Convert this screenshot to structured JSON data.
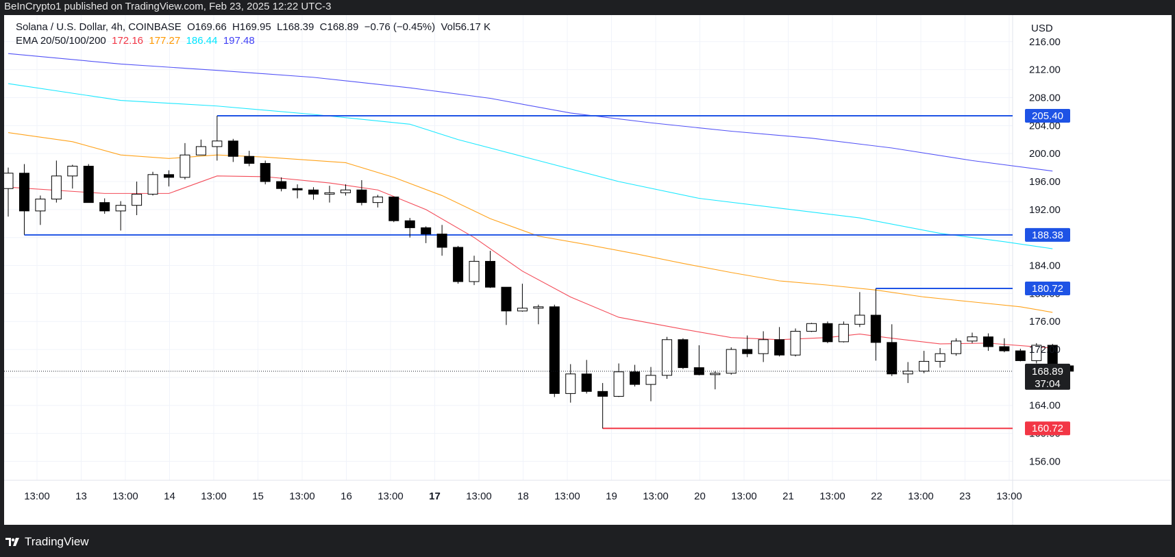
{
  "header": {
    "published_text": "BeInCrypto1 published on TradingView.com, Feb 23, 2025 12:22 UTC-3"
  },
  "legend": {
    "symbol": "Solana / U.S. Dollar, 4h, COINBASE",
    "open": "O169.66",
    "high": "H169.95",
    "low": "L168.39",
    "close": "C168.89",
    "change": "−0.76 (−0.45%)",
    "volume": "Vol56.17 K",
    "ema_label": "EMA 20/50/100/200",
    "ema_values": [
      "172.16",
      "177.27",
      "186.44",
      "197.48"
    ]
  },
  "footer": {
    "brand": "TradingView"
  },
  "colors": {
    "up_body": "#ffffff",
    "down_body": "#000000",
    "ema20": "#f23645",
    "ema50": "#ff9800",
    "ema100": "#00e5ff",
    "ema200": "#3f3ff5",
    "level_line": "#1e53e5",
    "support_line": "#f23645",
    "price_badge": "#1e1f22"
  },
  "chart_data": {
    "type": "candlestick",
    "currency": "USD",
    "ylim": [
      153.3,
      219.8
    ],
    "y_ticks": [
      156,
      160,
      164,
      168,
      172,
      176,
      180,
      184,
      188,
      192,
      196,
      200,
      204,
      208,
      212,
      216
    ],
    "x_ticks": [
      "13:00",
      "13",
      "13:00",
      "14",
      "13:00",
      "15",
      "13:00",
      "16",
      "13:00",
      "17",
      "13:00",
      "18",
      "13:00",
      "19",
      "13:00",
      "20",
      "13:00",
      "21",
      "13:00",
      "22",
      "13:00",
      "23",
      "13:00"
    ],
    "x_tick_bold_index": 9,
    "candles": [
      {
        "o": 195.0,
        "h": 198.0,
        "l": 191.0,
        "c": 197.2
      },
      {
        "o": 197.2,
        "h": 198.5,
        "l": 188.4,
        "c": 191.8
      },
      {
        "o": 191.8,
        "h": 194.0,
        "l": 189.8,
        "c": 193.5
      },
      {
        "o": 193.5,
        "h": 199.0,
        "l": 193.0,
        "c": 196.8
      },
      {
        "o": 196.8,
        "h": 198.4,
        "l": 195.0,
        "c": 198.2
      },
      {
        "o": 198.2,
        "h": 198.5,
        "l": 193.0,
        "c": 193.0
      },
      {
        "o": 193.0,
        "h": 193.6,
        "l": 191.4,
        "c": 191.8
      },
      {
        "o": 191.8,
        "h": 193.2,
        "l": 189.0,
        "c": 192.6
      },
      {
        "o": 192.6,
        "h": 196.0,
        "l": 191.2,
        "c": 194.2
      },
      {
        "o": 194.2,
        "h": 197.4,
        "l": 194.0,
        "c": 197.0
      },
      {
        "o": 197.0,
        "h": 197.6,
        "l": 195.3,
        "c": 196.6
      },
      {
        "o": 196.6,
        "h": 201.5,
        "l": 196.3,
        "c": 199.8
      },
      {
        "o": 199.8,
        "h": 202.0,
        "l": 199.8,
        "c": 201.0
      },
      {
        "o": 201.0,
        "h": 205.4,
        "l": 199.0,
        "c": 201.8
      },
      {
        "o": 201.8,
        "h": 202.1,
        "l": 198.8,
        "c": 199.6
      },
      {
        "o": 199.6,
        "h": 200.4,
        "l": 198.2,
        "c": 198.6
      },
      {
        "o": 198.6,
        "h": 199.0,
        "l": 195.6,
        "c": 196.0
      },
      {
        "o": 196.0,
        "h": 196.6,
        "l": 194.6,
        "c": 195.0
      },
      {
        "o": 195.0,
        "h": 195.6,
        "l": 193.6,
        "c": 194.8
      },
      {
        "o": 194.8,
        "h": 195.2,
        "l": 193.4,
        "c": 194.2
      },
      {
        "o": 194.2,
        "h": 195.4,
        "l": 193.0,
        "c": 194.4
      },
      {
        "o": 194.4,
        "h": 195.6,
        "l": 194.0,
        "c": 194.8
      },
      {
        "o": 194.8,
        "h": 196.2,
        "l": 192.6,
        "c": 193.0
      },
      {
        "o": 193.0,
        "h": 194.1,
        "l": 192.3,
        "c": 193.8
      },
      {
        "o": 193.8,
        "h": 193.8,
        "l": 190.2,
        "c": 190.4
      },
      {
        "o": 190.4,
        "h": 190.8,
        "l": 188.0,
        "c": 189.4
      },
      {
        "o": 189.4,
        "h": 189.6,
        "l": 187.2,
        "c": 188.5
      },
      {
        "o": 188.5,
        "h": 189.8,
        "l": 185.4,
        "c": 186.6
      },
      {
        "o": 186.6,
        "h": 186.8,
        "l": 181.4,
        "c": 181.7
      },
      {
        "o": 181.7,
        "h": 185.4,
        "l": 181.2,
        "c": 184.6
      },
      {
        "o": 184.6,
        "h": 186.1,
        "l": 180.8,
        "c": 180.9
      },
      {
        "o": 180.9,
        "h": 180.9,
        "l": 175.5,
        "c": 177.5
      },
      {
        "o": 177.5,
        "h": 181.4,
        "l": 177.4,
        "c": 177.9
      },
      {
        "o": 177.9,
        "h": 178.4,
        "l": 175.6,
        "c": 178.1
      },
      {
        "o": 178.1,
        "h": 178.4,
        "l": 165.2,
        "c": 165.7
      },
      {
        "o": 165.7,
        "h": 169.9,
        "l": 164.4,
        "c": 168.5
      },
      {
        "o": 168.5,
        "h": 170.5,
        "l": 165.7,
        "c": 166.0
      },
      {
        "o": 166.0,
        "h": 167.2,
        "l": 160.7,
        "c": 165.3
      },
      {
        "o": 165.3,
        "h": 170.0,
        "l": 165.2,
        "c": 168.8
      },
      {
        "o": 168.8,
        "h": 169.8,
        "l": 166.7,
        "c": 167.0
      },
      {
        "o": 167.0,
        "h": 169.5,
        "l": 164.6,
        "c": 168.3
      },
      {
        "o": 168.3,
        "h": 173.8,
        "l": 167.8,
        "c": 173.4
      },
      {
        "o": 173.4,
        "h": 173.6,
        "l": 169.2,
        "c": 169.4
      },
      {
        "o": 169.4,
        "h": 172.6,
        "l": 168.3,
        "c": 168.4
      },
      {
        "o": 168.4,
        "h": 168.9,
        "l": 166.3,
        "c": 168.6
      },
      {
        "o": 168.6,
        "h": 172.3,
        "l": 168.4,
        "c": 172.0
      },
      {
        "o": 172.0,
        "h": 174.0,
        "l": 170.9,
        "c": 171.4
      },
      {
        "o": 171.4,
        "h": 174.6,
        "l": 170.2,
        "c": 173.4
      },
      {
        "o": 173.4,
        "h": 175.2,
        "l": 171.0,
        "c": 171.2
      },
      {
        "o": 171.2,
        "h": 175.0,
        "l": 171.0,
        "c": 174.6
      },
      {
        "o": 174.6,
        "h": 175.8,
        "l": 174.5,
        "c": 175.7
      },
      {
        "o": 175.7,
        "h": 176.0,
        "l": 172.9,
        "c": 173.1
      },
      {
        "o": 173.1,
        "h": 176.0,
        "l": 173.0,
        "c": 175.6
      },
      {
        "o": 175.6,
        "h": 180.2,
        "l": 175.2,
        "c": 176.9
      },
      {
        "o": 176.9,
        "h": 180.7,
        "l": 170.4,
        "c": 173.0
      },
      {
        "o": 173.0,
        "h": 175.6,
        "l": 168.2,
        "c": 168.5
      },
      {
        "o": 168.5,
        "h": 170.2,
        "l": 167.2,
        "c": 168.9
      },
      {
        "o": 168.9,
        "h": 171.8,
        "l": 168.6,
        "c": 170.3
      },
      {
        "o": 170.3,
        "h": 172.2,
        "l": 169.4,
        "c": 171.4
      },
      {
        "o": 171.4,
        "h": 173.6,
        "l": 171.1,
        "c": 173.2
      },
      {
        "o": 173.2,
        "h": 174.4,
        "l": 172.9,
        "c": 173.8
      },
      {
        "o": 173.8,
        "h": 174.3,
        "l": 171.8,
        "c": 172.4
      },
      {
        "o": 172.4,
        "h": 173.6,
        "l": 171.6,
        "c": 171.8
      },
      {
        "o": 171.8,
        "h": 172.1,
        "l": 170.3,
        "c": 170.4
      },
      {
        "o": 170.4,
        "h": 172.9,
        "l": 170.0,
        "c": 172.6
      },
      {
        "o": 172.6,
        "h": 172.8,
        "l": 169.2,
        "c": 169.3
      },
      {
        "o": 169.66,
        "h": 169.95,
        "l": 168.39,
        "c": 168.89
      }
    ],
    "ema": [
      {
        "name": "EMA 20",
        "color": "#f23645",
        "values": [
          [
            0,
            195.2
          ],
          [
            6,
            194.3
          ],
          [
            10,
            194.3
          ],
          [
            13,
            196.8
          ],
          [
            16,
            196.7
          ],
          [
            20,
            195.8
          ],
          [
            23,
            194.8
          ],
          [
            26,
            192.0
          ],
          [
            29,
            188.0
          ],
          [
            32,
            183.2
          ],
          [
            35,
            179.5
          ],
          [
            38,
            176.6
          ],
          [
            42,
            174.9
          ],
          [
            45,
            173.7
          ],
          [
            48,
            173.4
          ],
          [
            51,
            173.7
          ],
          [
            53,
            174.2
          ],
          [
            55,
            173.6
          ],
          [
            58,
            172.8
          ],
          [
            61,
            172.9
          ],
          [
            65,
            172.2
          ]
        ]
      },
      {
        "name": "EMA 50",
        "color": "#ff9800",
        "values": [
          [
            0,
            203.0
          ],
          [
            4,
            201.7
          ],
          [
            7,
            199.8
          ],
          [
            10,
            199.3
          ],
          [
            13,
            199.8
          ],
          [
            16,
            199.5
          ],
          [
            21,
            198.7
          ],
          [
            24,
            196.6
          ],
          [
            27,
            194.0
          ],
          [
            30,
            190.7
          ],
          [
            33,
            188.2
          ],
          [
            36,
            187.0
          ],
          [
            39,
            185.7
          ],
          [
            42,
            184.3
          ],
          [
            45,
            183.0
          ],
          [
            48,
            181.8
          ],
          [
            51,
            181.2
          ],
          [
            54,
            180.5
          ],
          [
            57,
            179.5
          ],
          [
            60,
            178.8
          ],
          [
            63,
            178.1
          ],
          [
            65,
            177.3
          ]
        ]
      },
      {
        "name": "EMA 100",
        "color": "#00e5ff",
        "values": [
          [
            0,
            210.0
          ],
          [
            7,
            207.6
          ],
          [
            13,
            206.8
          ],
          [
            19,
            205.6
          ],
          [
            25,
            204.2
          ],
          [
            28,
            202.0
          ],
          [
            33,
            199.0
          ],
          [
            38,
            196.0
          ],
          [
            43,
            193.6
          ],
          [
            48,
            192.2
          ],
          [
            53,
            190.8
          ],
          [
            58,
            188.6
          ],
          [
            62,
            187.4
          ],
          [
            65,
            186.4
          ]
        ]
      },
      {
        "name": "EMA 200",
        "color": "#3f3ff5",
        "values": [
          [
            0,
            214.3
          ],
          [
            7,
            212.8
          ],
          [
            13,
            211.9
          ],
          [
            19,
            210.9
          ],
          [
            25,
            209.4
          ],
          [
            30,
            207.9
          ],
          [
            35,
            205.8
          ],
          [
            40,
            204.4
          ],
          [
            45,
            203.2
          ],
          [
            50,
            202.2
          ],
          [
            55,
            200.8
          ],
          [
            60,
            199.0
          ],
          [
            65,
            197.5
          ]
        ]
      }
    ],
    "levels": [
      {
        "price": 205.4,
        "label": "205.40",
        "from_index": 13,
        "color": "#1e53e5"
      },
      {
        "price": 188.38,
        "label": "188.38",
        "from_index": 1,
        "color": "#1e53e5"
      },
      {
        "price": 180.72,
        "label": "180.72",
        "from_index": 54,
        "color": "#1e53e5"
      },
      {
        "price": 160.72,
        "label": "160.72",
        "from_index": 37,
        "color": "#f23645"
      }
    ],
    "last_price": {
      "price": 168.89,
      "label": "168.89",
      "countdown": "37:04"
    }
  }
}
